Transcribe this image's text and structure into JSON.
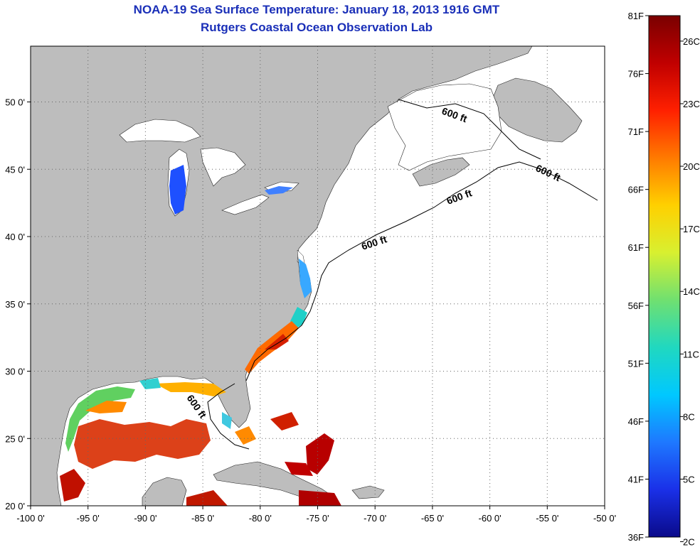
{
  "title": {
    "line1": "NOAA-19 Sea Surface Temperature:  January 18, 2013 1916 GMT",
    "line2": "Rutgers Coastal Ocean Observation Lab"
  },
  "map": {
    "region": "US East Coast / Gulf of Mexico",
    "lon_ticks": [
      "-100 0'",
      "-95 0'",
      "-90 0'",
      "-85 0'",
      "-80 0'",
      "-75 0'",
      "-70 0'",
      "-65 0'",
      "-60 0'",
      "-55 0'",
      "-50 0'"
    ],
    "lat_ticks": [
      "20 0'",
      "25 0'",
      "30 0'",
      "35 0'",
      "40 0'",
      "45 0'",
      "50 0'"
    ],
    "contour_labels": [
      "600 ft",
      "600 ft",
      "600 ft",
      "600 ft",
      "600 ft"
    ],
    "grid": "dotted",
    "land_color": "#bdbdbd"
  },
  "colorbar": {
    "fahrenheit_labels": [
      "81F",
      "76F",
      "71F",
      "66F",
      "61F",
      "56F",
      "51F",
      "46F",
      "41F",
      "36F"
    ],
    "celsius_labels": [
      "26C",
      "23C",
      "20C",
      "17C",
      "14C",
      "11C",
      "8C",
      "5C",
      "2C"
    ],
    "colors": [
      "#7a0000",
      "#c00000",
      "#ff2000",
      "#ff7a00",
      "#ffd000",
      "#d8f030",
      "#70e070",
      "#20d8c0",
      "#00c8ff",
      "#1e78ff",
      "#1a30e8",
      "#0a0a8a"
    ]
  }
}
